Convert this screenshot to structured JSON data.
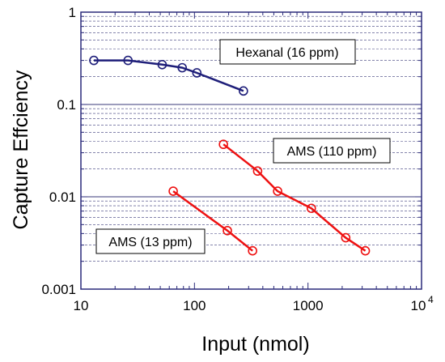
{
  "chart_data": {
    "type": "scatter",
    "title": "",
    "xlabel": "Input (nmol)",
    "ylabel": "Capture Effciency",
    "xscale": "log",
    "yscale": "log",
    "xlim": [
      10,
      10000
    ],
    "ylim": [
      0.001,
      1
    ],
    "x_tick_labels": [
      "10",
      "100",
      "1000",
      "10"
    ],
    "x_last_tick_exponent": "4",
    "y_tick_labels": [
      "0.001",
      "0.01",
      "0.1",
      "1"
    ],
    "grid": "horizontal minor and major gridlines",
    "series": [
      {
        "name": "Hexanal (16 ppm)",
        "color": "#1f1f7a",
        "marker": "open-circle",
        "x": [
          13,
          26,
          52,
          78,
          105,
          270
        ],
        "y": [
          0.3,
          0.3,
          0.27,
          0.25,
          0.22,
          0.14
        ]
      },
      {
        "name": "AMS (110 ppm)",
        "color": "#ee1111",
        "marker": "open-circle",
        "x": [
          180,
          360,
          540,
          1070,
          2150,
          3200
        ],
        "y": [
          0.037,
          0.019,
          0.0115,
          0.0075,
          0.0036,
          0.0026
        ]
      },
      {
        "name": "AMS (13 ppm)",
        "color": "#ee1111",
        "marker": "open-circle",
        "x": [
          65,
          195,
          325
        ],
        "y": [
          0.0115,
          0.0043,
          0.0026
        ]
      }
    ],
    "annotations": [
      "Hexanal (16 ppm)",
      "AMS (110 ppm)",
      "AMS (13 ppm)"
    ]
  }
}
